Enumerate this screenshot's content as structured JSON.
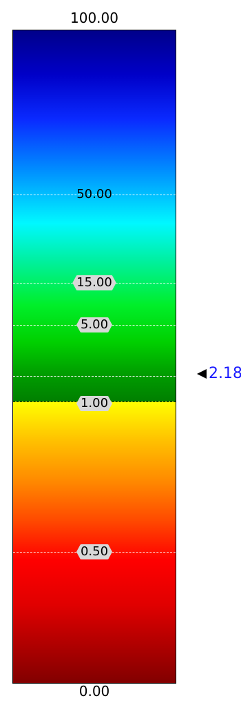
{
  "scale": {
    "max_label": "100.00",
    "min_label": "0.00"
  },
  "ticks": [
    {
      "value": 50,
      "label": "50.00"
    },
    {
      "value": 15,
      "label": "15.00"
    },
    {
      "value": 5,
      "label": "5.00"
    },
    {
      "value": 1,
      "label": "1.00"
    },
    {
      "value": 0.5,
      "label": "0.50"
    }
  ],
  "marker": {
    "value": 2.18,
    "label": "2.18"
  },
  "colors": {
    "marker_text": "#1a1aff",
    "border": "#000000"
  }
}
